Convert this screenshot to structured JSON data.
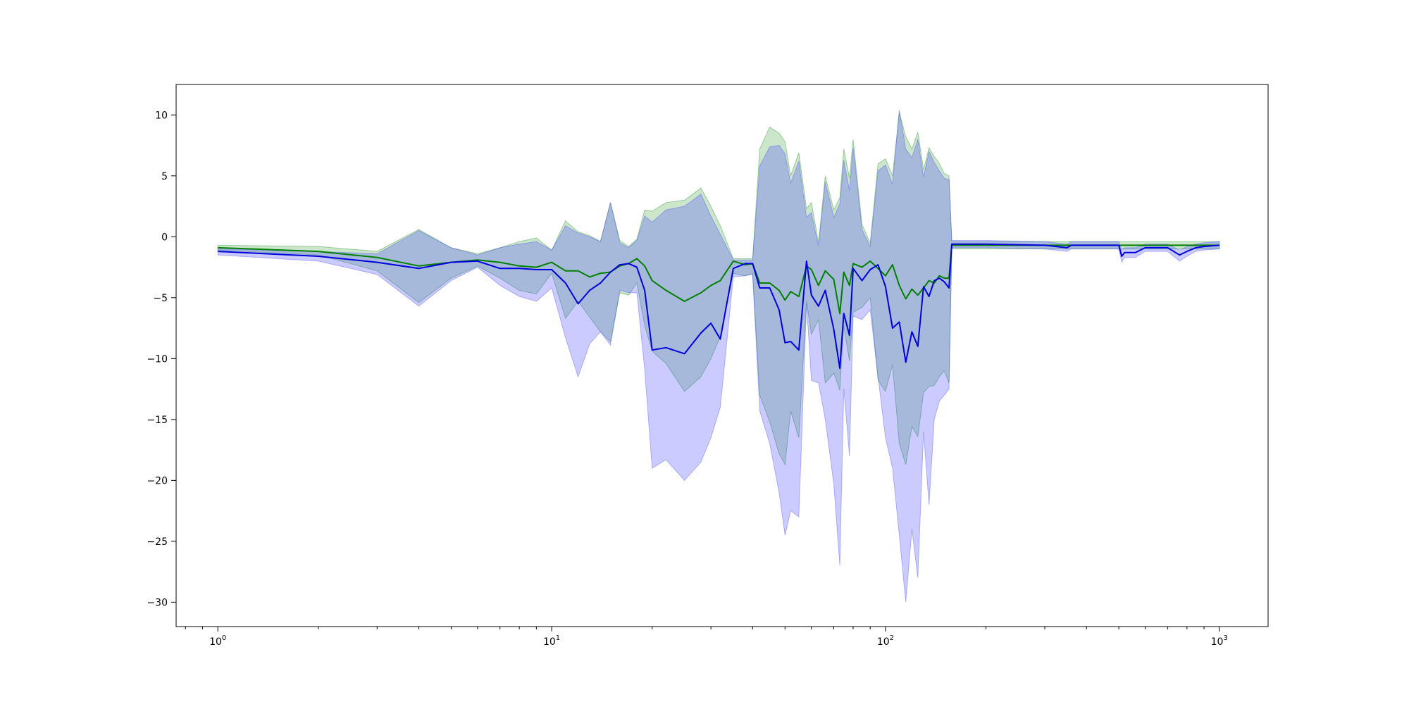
{
  "chart_data": {
    "type": "area",
    "xscale": "log",
    "xlim": [
      0.75,
      1400
    ],
    "ylim": [
      -32,
      12.5
    ],
    "grid": false,
    "legend": "none",
    "x_ticks": [
      {
        "value": 1,
        "base": "10",
        "exp": "0"
      },
      {
        "value": 10,
        "base": "10",
        "exp": "1"
      },
      {
        "value": 100,
        "base": "10",
        "exp": "2"
      },
      {
        "value": 1000,
        "base": "10",
        "exp": "3"
      }
    ],
    "x_minor_ticks": [
      0.8,
      0.9,
      2,
      3,
      4,
      5,
      6,
      7,
      8,
      9,
      20,
      30,
      40,
      50,
      60,
      70,
      80,
      90,
      200,
      300,
      400,
      500,
      600,
      700,
      800,
      900
    ],
    "y_ticks": [
      {
        "value": 10,
        "label": "10"
      },
      {
        "value": 5,
        "label": "5"
      },
      {
        "value": 0,
        "label": "0"
      },
      {
        "value": -5,
        "label": "−5"
      },
      {
        "value": -10,
        "label": "−10"
      },
      {
        "value": -15,
        "label": "−15"
      },
      {
        "value": -20,
        "label": "−20"
      },
      {
        "value": -25,
        "label": "−25"
      },
      {
        "value": -30,
        "label": "−30"
      }
    ],
    "series": [
      {
        "color": "#008000",
        "band_color": "#008000",
        "band_opacity": 0.2,
        "x": [
          1,
          2,
          3,
          4,
          5,
          6,
          7,
          8,
          9,
          10,
          11,
          12,
          13,
          14,
          15,
          16,
          17,
          18,
          19,
          20,
          22,
          25,
          28,
          30,
          32,
          35,
          38,
          40,
          42,
          45,
          48,
          50,
          52,
          55,
          58,
          60,
          63,
          66,
          70,
          73,
          75,
          78,
          80,
          85,
          90,
          95,
          100,
          105,
          110,
          115,
          120,
          125,
          130,
          135,
          140,
          145,
          150,
          155,
          158,
          165,
          200,
          300,
          350,
          360,
          400,
          500,
          510,
          520,
          560,
          600,
          700,
          760,
          800,
          850,
          900,
          1000
        ],
        "y": [
          -0.9,
          -1.2,
          -1.7,
          -2.4,
          -2.1,
          -1.9,
          -2.1,
          -2.4,
          -2.5,
          -2.1,
          -2.8,
          -2.8,
          -3.3,
          -3.0,
          -2.9,
          -2.4,
          -2.2,
          -1.8,
          -2.4,
          -3.6,
          -4.4,
          -5.3,
          -4.6,
          -4.0,
          -3.6,
          -2.0,
          -2.3,
          -2.2,
          -3.8,
          -3.8,
          -4.4,
          -5.2,
          -4.5,
          -4.9,
          -2.4,
          -2.7,
          -4.0,
          -2.8,
          -3.5,
          -6.3,
          -2.9,
          -4.0,
          -2.2,
          -2.5,
          -2.0,
          -2.6,
          -3.2,
          -2.3,
          -4.0,
          -5.1,
          -4.3,
          -4.8,
          -4.2,
          -3.6,
          -3.8,
          -3.2,
          -3.4,
          -3.4,
          -0.7,
          -0.7,
          -0.7,
          -0.7,
          -0.7,
          -0.7,
          -0.7,
          -0.7,
          -0.7,
          -0.7,
          -0.7,
          -0.7,
          -0.7,
          -0.7,
          -0.7,
          -0.7,
          -0.7,
          -0.7
        ],
        "upper": [
          -0.7,
          -0.8,
          -1.2,
          0.6,
          -0.9,
          -1.4,
          -0.9,
          -0.4,
          -0.1,
          -1.1,
          1.3,
          0.4,
          0.1,
          -0.4,
          2.8,
          -0.3,
          -0.8,
          -0.2,
          2.2,
          2.1,
          2.8,
          3.0,
          4.0,
          2.5,
          0.9,
          -1.8,
          -1.8,
          -1.8,
          7.2,
          9.0,
          8.5,
          7.8,
          5.0,
          6.9,
          2.3,
          2.8,
          -0.5,
          5.0,
          2.2,
          3.2,
          7.2,
          4.8,
          8.0,
          1.0,
          -0.5,
          6.0,
          6.4,
          5.0,
          10.2,
          8.2,
          7.2,
          8.6,
          5.5,
          7.3,
          6.6,
          6.0,
          5.2,
          5.0,
          -0.4,
          -0.4,
          -0.4,
          -0.4,
          -0.4,
          -0.4,
          -0.4,
          -0.4,
          -0.4,
          -0.4,
          -0.4,
          -0.4,
          -0.4,
          -0.4,
          -0.4,
          -0.4,
          -0.4,
          -0.4
        ],
        "lower": [
          -1.1,
          -1.5,
          -2.8,
          -5.4,
          -3.4,
          -2.4,
          -3.4,
          -4.4,
          -4.7,
          -3.0,
          -6.7,
          -5.3,
          -6.6,
          -7.8,
          -8.6,
          -4.6,
          -4.8,
          -3.8,
          -7.3,
          -9.4,
          -10.4,
          -12.7,
          -11.5,
          -10.0,
          -8.2,
          -3.0,
          -3.2,
          -3.0,
          -13.0,
          -15.2,
          -17.8,
          -18.7,
          -14.3,
          -16.5,
          -5.3,
          -8.0,
          -6.8,
          -12.0,
          -11.2,
          -12.6,
          -7.3,
          -10.2,
          -6.2,
          -5.8,
          -5.0,
          -11.8,
          -12.7,
          -10.5,
          -17.0,
          -18.7,
          -15.6,
          -16.4,
          -12.8,
          -12.3,
          -12.2,
          -11.5,
          -11.0,
          -12.0,
          -1.0,
          -1.0,
          -1.0,
          -1.0,
          -1.0,
          -1.0,
          -1.0,
          -1.0,
          -1.0,
          -1.0,
          -1.0,
          -1.0,
          -1.0,
          -1.0,
          -1.0,
          -1.0,
          -1.0,
          -1.0
        ]
      },
      {
        "color": "#0000e0",
        "band_color": "#4040ff",
        "band_opacity": 0.27,
        "x": [
          1,
          2,
          3,
          4,
          5,
          6,
          7,
          8,
          9,
          10,
          11,
          12,
          13,
          14,
          15,
          16,
          17,
          18,
          19,
          20,
          22,
          25,
          28,
          30,
          32,
          35,
          38,
          40,
          42,
          45,
          48,
          50,
          52,
          55,
          58,
          60,
          63,
          66,
          70,
          73,
          75,
          78,
          80,
          85,
          90,
          95,
          100,
          105,
          110,
          115,
          120,
          125,
          130,
          135,
          140,
          145,
          150,
          155,
          158,
          165,
          200,
          300,
          350,
          360,
          400,
          500,
          510,
          520,
          560,
          600,
          700,
          760,
          800,
          850,
          900,
          1000
        ],
        "y": [
          -1.2,
          -1.6,
          -2.1,
          -2.6,
          -2.1,
          -2.0,
          -2.6,
          -2.6,
          -2.7,
          -2.7,
          -3.8,
          -5.5,
          -4.4,
          -3.8,
          -2.9,
          -2.3,
          -2.2,
          -2.5,
          -4.4,
          -9.3,
          -9.1,
          -9.6,
          -7.9,
          -7.1,
          -8.4,
          -2.6,
          -2.2,
          -2.2,
          -4.2,
          -4.2,
          -6.0,
          -8.7,
          -8.6,
          -9.3,
          -2.0,
          -4.8,
          -5.7,
          -4.4,
          -7.6,
          -10.8,
          -6.3,
          -8.1,
          -2.6,
          -3.6,
          -2.7,
          -2.3,
          -4.1,
          -7.5,
          -7.0,
          -10.3,
          -7.8,
          -9.0,
          -4.1,
          -4.9,
          -3.6,
          -3.4,
          -3.7,
          -4.2,
          -0.6,
          -0.6,
          -0.6,
          -0.7,
          -0.9,
          -0.7,
          -0.7,
          -0.7,
          -1.6,
          -1.3,
          -1.3,
          -0.9,
          -0.9,
          -1.5,
          -1.2,
          -0.9,
          -0.8,
          -0.7
        ],
        "upper": [
          -1.0,
          -1.2,
          -1.4,
          0.5,
          -0.9,
          -1.5,
          -0.9,
          -0.6,
          -0.4,
          -1.1,
          0.9,
          0.3,
          0.0,
          -0.4,
          2.8,
          -0.5,
          -0.9,
          -0.3,
          1.7,
          1.2,
          2.2,
          2.5,
          3.5,
          1.7,
          0.2,
          -1.9,
          -1.9,
          -1.9,
          5.8,
          7.4,
          7.5,
          6.8,
          4.4,
          6.2,
          1.6,
          2.0,
          -0.8,
          4.5,
          1.6,
          2.7,
          6.3,
          3.8,
          7.3,
          0.6,
          -0.8,
          5.4,
          5.9,
          4.3,
          10.4,
          7.2,
          6.5,
          8.0,
          4.9,
          7.0,
          6.1,
          5.4,
          4.8,
          4.7,
          -0.3,
          -0.3,
          -0.3,
          -0.4,
          -0.6,
          -0.4,
          -0.4,
          -0.4,
          -1.1,
          -0.9,
          -0.9,
          -0.6,
          -0.6,
          -1.1,
          -0.8,
          -0.6,
          -0.5,
          -0.4
        ],
        "lower": [
          -1.5,
          -2.0,
          -3.1,
          -5.7,
          -3.6,
          -2.5,
          -4.0,
          -4.9,
          -5.3,
          -4.2,
          -8.3,
          -11.5,
          -8.8,
          -7.8,
          -8.9,
          -4.4,
          -4.6,
          -4.6,
          -10.9,
          -19.0,
          -18.3,
          -20.0,
          -18.5,
          -16.5,
          -14.0,
          -3.3,
          -3.2,
          -3.1,
          -14.3,
          -17.0,
          -21.0,
          -24.5,
          -22.5,
          -23.0,
          -5.5,
          -11.8,
          -12.0,
          -15.0,
          -20.3,
          -27.0,
          -12.5,
          -18.0,
          -6.5,
          -6.8,
          -6.0,
          -11.5,
          -16.5,
          -19.0,
          -24.5,
          -30.0,
          -24.0,
          -28.0,
          -16.0,
          -22.0,
          -15.0,
          -13.5,
          -13.0,
          -12.5,
          -0.9,
          -0.9,
          -0.9,
          -1.0,
          -1.2,
          -1.0,
          -1.0,
          -1.0,
          -2.1,
          -1.7,
          -1.7,
          -1.2,
          -1.2,
          -2.0,
          -1.6,
          -1.2,
          -1.1,
          -1.0
        ]
      }
    ]
  }
}
